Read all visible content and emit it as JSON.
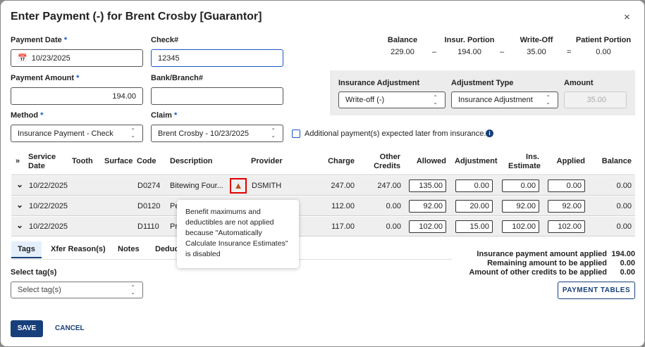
{
  "title": "Enter Payment (-) for Brent Crosby [Guarantor]",
  "close": "×",
  "payment_date": {
    "label": "Payment Date",
    "value": "10/23/2025"
  },
  "check": {
    "label": "Check#",
    "value": "12345"
  },
  "payment_amount": {
    "label": "Payment Amount",
    "value": "194.00"
  },
  "bank": {
    "label": "Bank/Branch#",
    "value": ""
  },
  "method": {
    "label": "Method",
    "value": "Insurance Payment - Check"
  },
  "claim": {
    "label": "Claim",
    "value": "Brent Crosby - 10/23/2025"
  },
  "summary": {
    "balance_label": "Balance",
    "balance": "229.00",
    "insur_label": "Insur. Portion",
    "insur": "194.00",
    "writeoff_label": "Write-Off",
    "writeoff": "35.00",
    "patient_label": "Patient Portion",
    "patient": "0.00",
    "minus": "–",
    "equals": "="
  },
  "adjustment": {
    "ins_adj_label": "Insurance Adjustment",
    "ins_adj_value": "Write-off (-)",
    "type_label": "Adjustment Type",
    "type_value": "Insurance Adjustment",
    "amount_label": "Amount",
    "amount_value": "35.00"
  },
  "additional_label": "Additional payment(s) expected later from insurance.",
  "table": {
    "headers": {
      "service_date": "Service Date",
      "tooth": "Tooth",
      "surface": "Surface",
      "code": "Code",
      "description": "Description",
      "provider": "Provider",
      "charge": "Charge",
      "other_credits": "Other Credits",
      "allowed": "Allowed",
      "adjustment": "Adjustment",
      "ins_estimate": "Ins. Estimate",
      "applied": "Applied",
      "balance": "Balance"
    },
    "rows": [
      {
        "date": "10/22/2025",
        "code": "D0274",
        "description": "Bitewing Four...",
        "provider": "DSMITH",
        "charge": "247.00",
        "other_credits": "247.00",
        "allowed": "135.00",
        "adjustment": "0.00",
        "ins_estimate": "0.00",
        "applied": "0.00",
        "balance": "0.00"
      },
      {
        "date": "10/22/2025",
        "code": "D0120",
        "description": "Pe",
        "provider": "",
        "charge": "112.00",
        "other_credits": "0.00",
        "allowed": "92.00",
        "adjustment": "20.00",
        "ins_estimate": "92.00",
        "applied": "92.00",
        "balance": "0.00"
      },
      {
        "date": "10/22/2025",
        "code": "D1110",
        "description": "Pr",
        "provider": "",
        "charge": "117.00",
        "other_credits": "0.00",
        "allowed": "102.00",
        "adjustment": "15.00",
        "ins_estimate": "102.00",
        "applied": "102.00",
        "balance": "0.00"
      }
    ]
  },
  "tooltip": "Benefit maximums and deductibles are not applied because \"Automatically Calculate Insurance Estimates\" is disabled",
  "tabs": [
    "Tags",
    "Xfer Reason(s)",
    "Notes",
    "Deduc"
  ],
  "tags": {
    "label": "Select tag(s)",
    "placeholder": "Select tag(s)"
  },
  "totals": {
    "applied_label": "Insurance payment amount applied",
    "applied": "194.00",
    "remaining_label": "Remaining amount to be applied",
    "remaining": "0.00",
    "other_label": "Amount of other credits to be applied",
    "other": "0.00"
  },
  "payment_tables": "PAYMENT TABLES",
  "save": "SAVE",
  "cancel": "CANCEL",
  "colors": {
    "primary": "#173f7a",
    "warning": "#c0501a",
    "highlight": "#e00000"
  }
}
